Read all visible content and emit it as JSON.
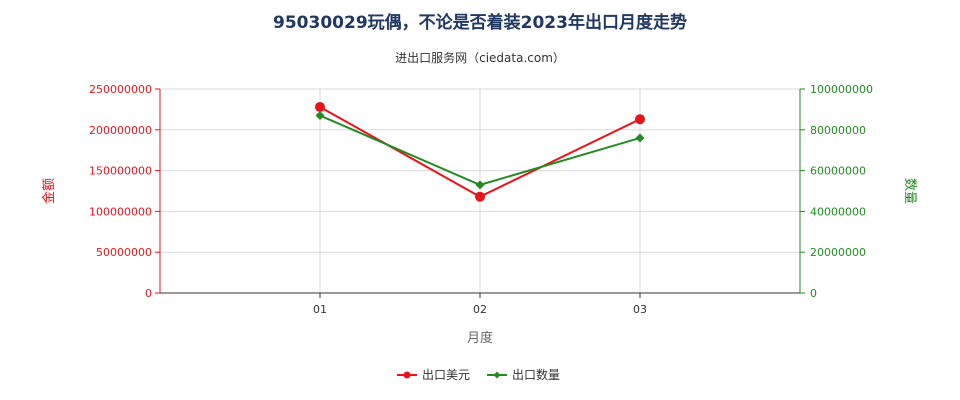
{
  "chart_data": {
    "type": "line",
    "title": "95030029玩偶，不论是否着装2023年出口月度走势",
    "subtitle": "进出口服务网（ciedata.com）",
    "xlabel": "月度",
    "ylabel_left": "金额",
    "ylabel_right": "数量",
    "categories": [
      "01",
      "02",
      "03"
    ],
    "y_left": {
      "min": 0,
      "max": 250000000,
      "ticks": [
        "0",
        "50000000",
        "100000000",
        "150000000",
        "200000000",
        "250000000"
      ],
      "tick_values": [
        0,
        50000000,
        100000000,
        150000000,
        200000000,
        250000000
      ]
    },
    "y_right": {
      "min": 0,
      "max": 100000000,
      "ticks": [
        "0",
        "20000000",
        "40000000",
        "60000000",
        "80000000",
        "100000000"
      ],
      "tick_values": [
        0,
        20000000,
        40000000,
        60000000,
        80000000,
        100000000
      ]
    },
    "series": [
      {
        "name": "出口美元",
        "axis": "left",
        "color": "#e8141a",
        "marker": "circle",
        "values": [
          228000000,
          118000000,
          213000000
        ]
      },
      {
        "name": "出口数量",
        "axis": "right",
        "color": "#228b22",
        "marker": "diamond",
        "values": [
          87000000,
          53000000,
          76000000
        ]
      }
    ],
    "grid": true,
    "legend_position": "bottom-center"
  }
}
